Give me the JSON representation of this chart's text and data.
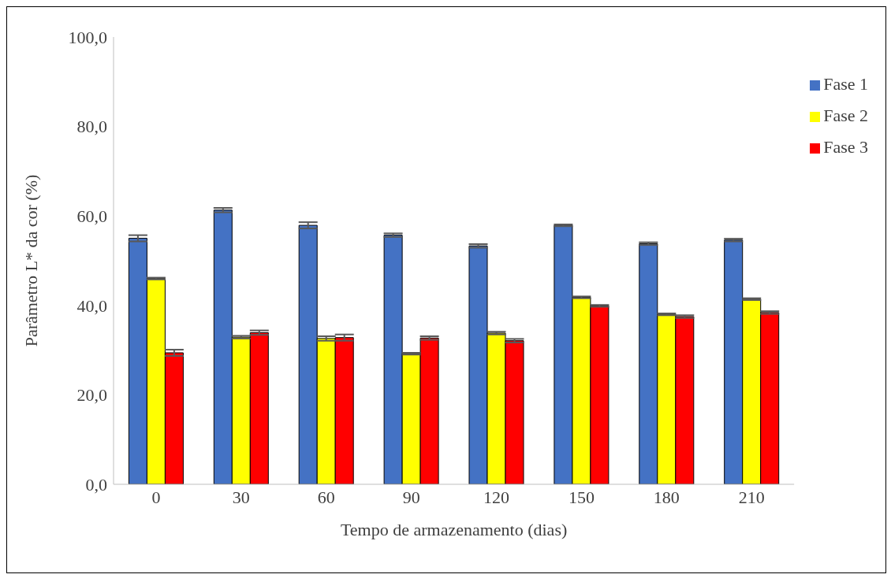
{
  "chart_data": {
    "type": "bar",
    "xlabel": "Tempo de armazenamento (dias)",
    "ylabel": "Parâmetro L* da cor (%)",
    "categories": [
      "0",
      "30",
      "60",
      "90",
      "120",
      "150",
      "180",
      "210"
    ],
    "series": [
      {
        "name": "Fase 1",
        "color": "#4472c4",
        "values": [
          55.0,
          61.3,
          57.9,
          55.7,
          53.3,
          57.9,
          53.8,
          54.6
        ],
        "errors": [
          0.7,
          0.5,
          0.7,
          0.4,
          0.4,
          0.2,
          0.3,
          0.3
        ]
      },
      {
        "name": "Fase 2",
        "color": "#ffff00",
        "values": [
          46.0,
          32.9,
          32.6,
          29.2,
          33.8,
          41.8,
          38.0,
          41.4
        ],
        "errors": [
          0.2,
          0.3,
          0.5,
          0.2,
          0.3,
          0.2,
          0.2,
          0.2
        ]
      },
      {
        "name": "Fase 3",
        "color": "#ff0000",
        "values": [
          29.4,
          33.9,
          32.8,
          32.7,
          32.1,
          39.9,
          37.5,
          38.4
        ],
        "errors": [
          0.7,
          0.5,
          0.7,
          0.4,
          0.4,
          0.2,
          0.3,
          0.3
        ]
      }
    ],
    "ylim": [
      0,
      100
    ],
    "yticks": [
      {
        "value": 0,
        "label": "0,0"
      },
      {
        "value": 20,
        "label": "20,0"
      },
      {
        "value": 40,
        "label": "40,0"
      },
      {
        "value": 60,
        "label": "60,0"
      },
      {
        "value": 80,
        "label": "80,0"
      },
      {
        "value": 100,
        "label": "100,0"
      }
    ],
    "grid": false,
    "legend": "right"
  }
}
